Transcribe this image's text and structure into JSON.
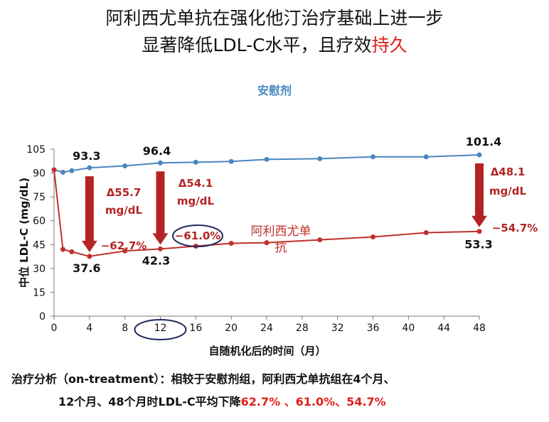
{
  "title": {
    "line1": "阿利西尤单抗在强化他汀治疗基础上进一步",
    "line2_main": "显著降低LDL-C水平，且疗效",
    "line2_red": "持久"
  },
  "colors": {
    "placebo": "#4a87c0",
    "drug": "#c0302c",
    "arrow": "#b52424",
    "emph_red": "#e0201b",
    "circle": "#1f2a5c"
  },
  "footnote": {
    "line1": "治疗分析（on-treatment）：相较于安慰剂组，阿利西尤单抗组在4个月、",
    "line2_main": "12个月、48个月时LDL-C平均下降",
    "line2_red": "62.7% 、61.0%、54.7%"
  },
  "chart_data": {
    "type": "line",
    "xlabel": "自随机化后的时间（月）",
    "ylabel": "中位 LDL-C (mg/dL)",
    "xlim": [
      0,
      48
    ],
    "ylim": [
      0,
      105
    ],
    "xticks": [
      0,
      4,
      8,
      12,
      16,
      20,
      24,
      28,
      32,
      36,
      40,
      44,
      48
    ],
    "yticks": [
      0,
      15,
      30,
      45,
      60,
      75,
      90,
      105
    ],
    "series": [
      {
        "name": "安慰剂",
        "color": "#4a87c0",
        "x": [
          0,
          1,
          2,
          4,
          8,
          12,
          16,
          20,
          24,
          30,
          36,
          42,
          48
        ],
        "y": [
          92,
          90.5,
          91.5,
          93.3,
          94.5,
          96.4,
          96.8,
          97.3,
          98.6,
          99,
          100.2,
          100.2,
          101.4
        ]
      },
      {
        "name": "阿利西尤单抗",
        "color": "#c0302c",
        "x": [
          0,
          1,
          2,
          4,
          8,
          12,
          16,
          20,
          24,
          30,
          36,
          42,
          48
        ],
        "y": [
          92,
          42,
          40.5,
          37.6,
          41,
          42.3,
          44,
          45.8,
          46.2,
          48,
          49.8,
          52.5,
          53.3
        ]
      }
    ],
    "point_labels": [
      {
        "text": "93.3",
        "x": 4,
        "y": 93.3
      },
      {
        "text": "96.4",
        "x": 12,
        "y": 96.4
      },
      {
        "text": "101.4",
        "x": 48,
        "y": 101.4
      },
      {
        "text": "37.6",
        "x": 4,
        "y": 37.6
      },
      {
        "text": "42.3",
        "x": 12,
        "y": 42.3
      },
      {
        "text": "53.3",
        "x": 48,
        "y": 53.3
      }
    ],
    "deltas": [
      {
        "x": 4,
        "from": 93.3,
        "to": 37.6,
        "label1": "Δ55.7",
        "label2": "mg/dL",
        "pct": "−62.7%"
      },
      {
        "x": 12,
        "from": 96.4,
        "to": 42.3,
        "label1": "Δ54.1",
        "label2": "mg/dL",
        "pct": "−61.0%"
      },
      {
        "x": 48,
        "from": 101.4,
        "to": 53.3,
        "label1": "Δ48.1",
        "label2": "mg/dL",
        "pct": "−54.7%"
      }
    ]
  }
}
